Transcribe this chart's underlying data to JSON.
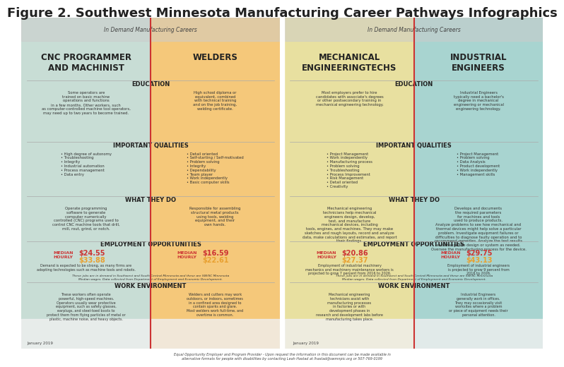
{
  "title": "Figure 2. Southwest Minnesota Manufacturing Career Pathways Infographics",
  "title_fontsize": 13,
  "title_color": "#222222",
  "bg_color": "#ffffff",
  "left_panel": {
    "header_text": "In Demand Manufacturing Careers",
    "header_bg": "#e8e8e8",
    "career1_title": "CNC PROGRAMMER\nAND MACHINIST",
    "career1_bg": "#b8d4c8",
    "career2_title": "WELDERS",
    "career2_bg": "#f5c87a",
    "education_header": "EDUCATION",
    "education1_text": "Some operators are\ntrained on basic machine\noperations and functions\nin a few months. Other workers, such\nas computer-controlled machine tool operators,\nmay need up to two years to become trained.",
    "education2_text": "High school diploma or\nequivalent, combined\nwith technical training\nand on the job training,\nwelding certificate.",
    "qualities_header": "IMPORTANT QUALITIES",
    "qualities1_text": "• High degree of autonomy\n• Troubleshooting\n• Integrity\n• Industrial automation\n• Process management\n• Data entry",
    "qualities2_text": "• Detail oriented\n• Self-starting / Self-motivated\n• Problem solving\n• Integrity\n• Dependability\n• Team player\n• Work independently\n• Basic computer skills",
    "whattheydo_header": "WHAT THEY DO",
    "whattheydo1_text": "Operate programming\nsoftware to generate\ncomputer numerically\ncontrolled (CNC) programs used to\ncontrol CNC machine tools that drill,\nmill, rout, grind, or notch.",
    "whattheydo2_text": "Responsible for assembling\nstructural metal products\nusing tools, welding\nequipment, and their\nown hands.",
    "emp_header": "EMPLOYMENT OPPORTUNITIES",
    "emp1_median_label": "MEDIAN\nHOURLY",
    "emp1_wage1": "$24.55",
    "emp1_wage2": "$33.88",
    "emp2_median_label": "MEDIAN\nHOURLY",
    "emp2_wage1": "$16.59",
    "emp2_wage2": "$22.61",
    "emp1_text": "Demand is expected to be strong, as many firms are\nadopting technologies such as machine tools and robots.",
    "emp_footnote": "These jobs are in demand in Southwest and South Central Minnesota and these are SW/SC Minnesota\nMedian wages. Data collected from Department of Employment and Economic Development.",
    "work_header": "WORK ENVIRONMENT",
    "work1_text": "These workers often operate\npowerful, high-speed machines.\nOperators usually wear protective\nequipment, such as safety glasses,\nearplugs, and steel-toed boots to\nprotect them from flying particles of metal or\nplastic, machine noise, and heavy objects.",
    "work2_text": "Welders and cutters may work\noutdoors, or indoors, sometimes\nin a confined area designed to\ncontain sparks and glare.\nMost welders work full-time, and\novertime is common."
  },
  "right_panel": {
    "header_text": "In Demand Manufacturing Careers",
    "career1_title": "MECHANICAL\nENGINEERINGTECHS",
    "career1_bg": "#e8e0a0",
    "career2_title": "INDUSTRIAL\nENGINEERS",
    "career2_bg": "#a8d4d0",
    "education_header": "EDUCATION",
    "education1_text": "Most employers prefer to hire\ncandidates with associate's degrees\nor other postsecondary training in\nmechanical engineering technology.",
    "education2_text": "Industrial Engineers\ntypically need a bachelor's\ndegree in mechanical\nengineering or mechanical\nengineering technology.",
    "qualities_header": "IMPORTANT QUALITIES",
    "qualities1_text": "• Project Management\n• Work independently\n• Manufacturing process\n• Problem solving\n• Troubleshooting\n• Process Improvement\n• Risk Management\n• Detail oriented\n• Creativity",
    "qualities2_text": "• Project Management\n• Problem solving\n• Data Analysis\n• Product development\n• Work independently\n• Management skills",
    "whattheydo_header": "WHAT THEY DO",
    "whattheydo1_text": "Mechanical engineering\ntechnicians help mechanical\nengineers design, develop,\ntest, and manufacture\nmechanical devices, including\ntools, engines, and machines. They may make\nsketches and rough layouts, record and analyze\ndata, make calculations and estimates, and report\ntheir findings.",
    "whattheydo2_text": "Develops and documents\nthe required parameters\nfor machines and tools\nused to produce products.\nAnalyze problems to see how mechanical and\nthermal devices might help solve a particular\nproblem. Investigate equipment failures or\ndifficulties to diagnose faulty operation and to\nrecommend remedies. Analyze the test results\nand change the design or system as needed.\nOversee the manufacturing process for the device.",
    "emp_header": "EMPLOYMENT OPPORTUNITIES",
    "emp1_median_label": "MEDIAN\nHOURLY",
    "emp1_wage1": "$20.86",
    "emp1_wage2": "$27.37",
    "emp2_median_label": "MEDIAN\nHOURLY",
    "emp2_wage1": "$29.75",
    "emp2_wage2": "$43.13",
    "emp1_text": "Employment of industrial machinery\nmechanics and machinery maintenance workers is\nprojected to grow 7 percent from 2016 to 2026.",
    "emp2_text": "Employment of industrial engineers\nis projected to grow 9 percent from\n2016 to 2026.",
    "emp_footnote": "These jobs are in demand in Southwest and South Central Minnesota and these are SW/SC Minnesota\nMedian wages. Data collected from Department of Employment and Economic Development.",
    "work_header": "WORK ENVIRONMENT",
    "work1_text": "Mechanical engineering\ntechnicians assist with\nmanufacturing processes\nin factories or with\ndevelopment phases in\nresearch and development labs before\nmanufacturing takes place.",
    "work2_text": "Industrial Engineers\ngenerally work in offices.\nThey may occasionally visit\nworksites where a problem\nor piece of equipment needs their\npersonal attention."
  },
  "footer_text": "Equal Opportunity Employer and Program Provider - Upon request the information in this document can be made available in\nalternative formats for people with disabilities by contacting Leah Hastad at lhastad@swmnpic.org or 507-769-0199",
  "date_text": "January 2019",
  "left_panel_bg": "#c8ddd5",
  "left_panel_right_bg": "#f5c87a",
  "right_panel_bg": "#e8e0a0",
  "right_panel_right_bg": "#a8d4d0",
  "header_bg_left": "#d0e8e0",
  "header_bg_right": "#d0e8e8",
  "section_header_color": "#333333",
  "wage_color1_left": "#cc3333",
  "wage_color2_left": "#e8a030",
  "wage_color1_right": "#cc3333",
  "wage_color2_right": "#e8a030",
  "divider_color": "#cc3333"
}
